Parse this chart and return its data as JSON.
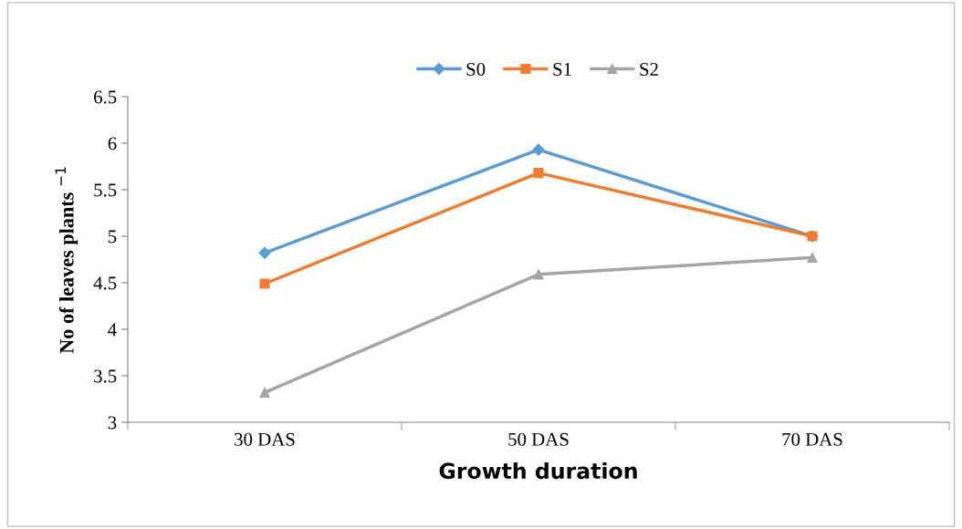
{
  "chart_data": {
    "type": "line",
    "xlabel": "Growth duration",
    "ylabel": "No of leaves plants $^{−1}$",
    "categories": [
      "30 DAS",
      "50 DAS",
      "70 DAS"
    ],
    "series": [
      {
        "name": "S0",
        "color": "#5b9bd5",
        "marker": "diamond",
        "values": [
          4.82,
          5.93,
          5.0
        ]
      },
      {
        "name": "S1",
        "color": "#ed7d31",
        "marker": "square",
        "values": [
          4.49,
          5.68,
          5.0
        ]
      },
      {
        "name": "S2",
        "color": "#a5a5a5",
        "marker": "triangle",
        "values": [
          3.32,
          4.59,
          4.77
        ]
      }
    ],
    "ylim": [
      3,
      6.5
    ],
    "yticks": [
      3,
      3.5,
      4,
      4.5,
      5,
      5.5,
      6,
      6.5
    ],
    "grid": false,
    "legend": "top",
    "line_style": "solid"
  }
}
